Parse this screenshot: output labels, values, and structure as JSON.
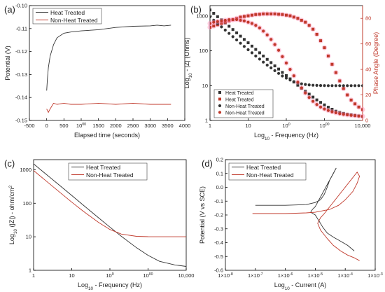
{
  "colors": {
    "black": "#333333",
    "red": "#c0392b",
    "pink": "#ff8cb4",
    "axis": "#000000"
  },
  "chart_data": [
    {
      "panel": "(a)",
      "type": "line",
      "xlabel": "Elapsed time (seconds)",
      "ylabel": "Potential (V)",
      "xlim": [
        -500,
        4000
      ],
      "ylim": [
        -0.15,
        -0.1
      ],
      "xticks": [
        "-500",
        "0",
        "500",
        "1000",
        "1500",
        "2000",
        "2500",
        "3000",
        "3500",
        "4000"
      ],
      "yticks": [
        "-0.15",
        "-0.14",
        "-0.13",
        "-0.12",
        "-0.11",
        "-0.10"
      ],
      "legend_position": "top-left",
      "series": [
        {
          "name": "Heat Treated",
          "color": "black",
          "x": [
            0,
            20,
            50,
            100,
            200,
            300,
            500,
            700,
            1000,
            1500,
            2000,
            2500,
            3000,
            3200,
            3400,
            3600
          ],
          "y": [
            -0.137,
            -0.132,
            -0.127,
            -0.122,
            -0.117,
            -0.114,
            -0.112,
            -0.1115,
            -0.111,
            -0.1105,
            -0.1095,
            -0.109,
            -0.1088,
            -0.1085,
            -0.1088,
            -0.1085
          ]
        },
        {
          "name": "Non-Heat Treated",
          "color": "red",
          "x": [
            0,
            50,
            100,
            200,
            300,
            500,
            700,
            1000,
            1500,
            2000,
            2500,
            3000,
            3500,
            3600
          ],
          "y": [
            -0.145,
            -0.1465,
            -0.145,
            -0.1425,
            -0.143,
            -0.1425,
            -0.143,
            -0.143,
            -0.1425,
            -0.143,
            -0.1425,
            -0.143,
            -0.143,
            -0.143
          ]
        }
      ]
    },
    {
      "panel": "(b)",
      "type": "scatter",
      "xlabel": "Log10 - Frequency (Hz)",
      "ylabel": "Log10 - |Z| (Ohms)",
      "y2label": "Phase Angle (Degree)",
      "xlim": [
        1,
        10000
      ],
      "xscale": "log",
      "ylim": [
        1,
        2000
      ],
      "yscale": "log",
      "y2lim": [
        0,
        90
      ],
      "xticks": [
        "1",
        "10",
        "100",
        "1000",
        "10,000"
      ],
      "yticks": [
        "1",
        "10",
        "100",
        "1000"
      ],
      "y2ticks": [
        "0",
        "20",
        "40",
        "60",
        "80"
      ],
      "legend_position": "bottom-left",
      "series": [
        {
          "name": "Heat Treated",
          "axis": "y",
          "marker": "square",
          "color": "black",
          "x": [
            1,
            1.25,
            1.58,
            2,
            2.51,
            3.16,
            3.98,
            5,
            6.3,
            7.9,
            10,
            12.6,
            15.8,
            20,
            25,
            31.6,
            39.8,
            50,
            63,
            79,
            100,
            126,
            158,
            200,
            251,
            316,
            398,
            501,
            631,
            794,
            1000,
            1259,
            1585,
            1995,
            2512,
            3162,
            3981,
            5012,
            6310,
            7943,
            10000
          ],
          "y": [
            1500,
            1200,
            960,
            780,
            630,
            510,
            410,
            330,
            265,
            213,
            171,
            137,
            110,
            88,
            71,
            57,
            46,
            37,
            30,
            24,
            19.5,
            15.7,
            12.7,
            10.3,
            8.4,
            6.9,
            5.7,
            4.7,
            3.9,
            3.3,
            2.8,
            2.4,
            2.1,
            1.85,
            1.7,
            1.6,
            1.5,
            1.45,
            1.4,
            1.35,
            1.3
          ]
        },
        {
          "name": "Heat Treated",
          "axis": "y2",
          "marker": "square",
          "color": "red",
          "x": [
            1,
            1.25,
            1.58,
            2,
            2.51,
            3.16,
            3.98,
            5,
            6.3,
            7.9,
            10,
            12.6,
            15.8,
            20,
            25,
            31.6,
            39.8,
            50,
            63,
            79,
            100,
            126,
            158,
            200,
            251,
            316,
            398,
            501,
            631,
            794,
            1000,
            1259,
            1585,
            1995,
            2512,
            3162,
            3981,
            5012,
            6310,
            7943,
            10000
          ],
          "y": [
            73,
            74,
            75,
            76,
            77,
            78,
            79,
            80,
            81,
            81.5,
            82,
            82.5,
            83,
            83.2,
            83.5,
            83.5,
            83.5,
            83.5,
            83.2,
            83,
            82.5,
            82,
            81,
            80,
            78.5,
            77,
            74.5,
            71.5,
            67.5,
            62.5,
            57,
            50.5,
            44,
            37.5,
            31,
            25,
            20,
            16,
            13,
            10.5,
            8.5
          ]
        },
        {
          "name": "Non-Heat Treated",
          "axis": "y",
          "marker": "circle",
          "color": "black",
          "x": [
            1,
            1.25,
            1.58,
            2,
            2.51,
            3.16,
            3.98,
            5,
            6.3,
            7.9,
            10,
            12.6,
            15.8,
            20,
            25,
            31.6,
            39.8,
            50,
            63,
            79,
            100,
            126,
            158,
            200,
            251,
            316,
            398,
            501,
            631,
            794,
            1000,
            1259,
            1585,
            1995,
            2512,
            3162,
            3981,
            5012,
            6310,
            7943,
            10000
          ],
          "y": [
            950,
            760,
            610,
            490,
            395,
            318,
            256,
            206,
            166,
            134,
            108,
            88,
            71,
            58,
            47.5,
            39,
            32.5,
            27,
            22.5,
            19,
            16.5,
            14.5,
            13,
            12,
            11.3,
            10.8,
            10.5,
            10.3,
            10.2,
            10.1,
            10.05,
            10,
            10,
            10,
            10,
            10,
            10,
            10,
            10,
            10,
            10
          ]
        },
        {
          "name": "Non-Heat Treated",
          "axis": "y2",
          "marker": "circle",
          "color": "red",
          "x": [
            1,
            1.25,
            1.58,
            2,
            2.51,
            3.16,
            3.98,
            5,
            6.3,
            7.9,
            10,
            12.6,
            15.8,
            20,
            25,
            31.6,
            39.8,
            50,
            63,
            79,
            100,
            126,
            158,
            200,
            251,
            316,
            398,
            501,
            631,
            794,
            1000,
            1259,
            1585,
            1995,
            2512,
            3162,
            3981,
            5012,
            6310,
            7943,
            10000
          ],
          "y": [
            76,
            77,
            77.5,
            78,
            78.5,
            79,
            79,
            79,
            78.5,
            78,
            77,
            76,
            74.5,
            72.5,
            70,
            67,
            63.5,
            59.5,
            55,
            50,
            45,
            40,
            35,
            30,
            25.5,
            21.5,
            18,
            15,
            12.5,
            10.5,
            9,
            7.8,
            6.8,
            6,
            5.3,
            4.8,
            4.4,
            4,
            3.7,
            3.4,
            3.2
          ]
        }
      ]
    },
    {
      "panel": "(c)",
      "type": "line",
      "xlabel": "Log10 - Frequency (Hz)",
      "ylabel": "Log10 (|Z|) - ohm/cm2",
      "xlim": [
        1,
        10000
      ],
      "xscale": "log",
      "ylim": [
        1,
        2000
      ],
      "yscale": "log",
      "xticks": [
        "1",
        "10",
        "100",
        "1000",
        "10,000"
      ],
      "yticks": [
        "1",
        "10",
        "100",
        "1000"
      ],
      "legend_position": "top-right",
      "series": [
        {
          "name": "Heat Treated",
          "color": "black",
          "x": [
            1,
            2,
            5,
            10,
            20,
            50,
            100,
            200,
            500,
            1000,
            2000,
            5000,
            10000
          ],
          "y": [
            1500,
            780,
            330,
            171,
            88,
            37,
            19.5,
            10.3,
            4.7,
            2.8,
            1.85,
            1.45,
            1.3
          ]
        },
        {
          "name": "Non-Heat Treated",
          "color": "red",
          "x": [
            1,
            2,
            5,
            10,
            20,
            50,
            100,
            200,
            500,
            1000,
            2000,
            5000,
            10000
          ],
          "y": [
            950,
            490,
            206,
            108,
            58,
            27,
            16.5,
            12,
            10.3,
            10.05,
            10,
            10,
            10
          ]
        }
      ]
    },
    {
      "panel": "(d)",
      "type": "line",
      "xlabel": "Log10 - Current (A)",
      "ylabel": "Potential (V vs SCE)",
      "xlim": [
        1e-08,
        0.001
      ],
      "xscale": "log",
      "ylim": [
        -0.6,
        0.2
      ],
      "xticks": [
        "1×10-8",
        "1×10-7",
        "1×10-6",
        "1×10-5",
        "1×10-4",
        "1×10-3"
      ],
      "yticks": [
        "-0.6",
        "-0.5",
        "-0.4",
        "-0.3",
        "-0.2",
        "-0.1",
        "0.0",
        "0.1",
        "0.2"
      ],
      "legend_position": "top-left",
      "series": [
        {
          "name": "Heat Treated",
          "color": "black",
          "x": [
            1e-07,
            1e-06,
            5e-06,
            1e-05,
            1.5e-05,
            2e-05,
            2.5e-05,
            3e-05,
            4e-05,
            5e-05,
            1e-05,
            8e-06,
            7e-06,
            1e-05,
            1.3e-05,
            1.8e-05,
            2.5e-05,
            4e-05,
            7e-05,
            0.00012,
            0.0002
          ],
          "y": [
            -0.13,
            -0.13,
            -0.125,
            -0.11,
            -0.09,
            -0.05,
            0.0,
            0.05,
            0.1,
            0.14,
            -0.14,
            -0.16,
            -0.18,
            -0.2,
            -0.24,
            -0.29,
            -0.33,
            -0.36,
            -0.39,
            -0.42,
            -0.46
          ]
        },
        {
          "name": "Non-Heat Treated",
          "color": "red",
          "x": [
            8e-08,
            1e-06,
            5e-06,
            1e-05,
            3e-05,
            6e-05,
            0.0001,
            0.00018,
            0.00025,
            0.0003,
            0.00025,
            2e-05,
            1.5e-05,
            1.2e-05,
            1.5e-05,
            2.5e-05,
            4e-05,
            7e-05,
            0.00012,
            0.0002,
            0.0003
          ],
          "y": [
            -0.19,
            -0.19,
            -0.185,
            -0.18,
            -0.16,
            -0.13,
            -0.09,
            -0.03,
            0.03,
            0.08,
            0.11,
            -0.19,
            -0.22,
            -0.26,
            -0.31,
            -0.37,
            -0.42,
            -0.46,
            -0.49,
            -0.51,
            -0.53
          ]
        }
      ]
    }
  ]
}
